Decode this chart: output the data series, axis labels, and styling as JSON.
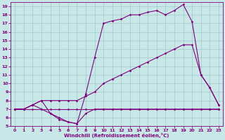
{
  "background_color": "#c8e8e8",
  "grid_color": "#a0c8c8",
  "line_color": "#800080",
  "xlabel": "Windchill (Refroidissement éolien,°C)",
  "xlim": [
    -0.5,
    23.5
  ],
  "ylim": [
    5,
    19.5
  ],
  "xticks": [
    0,
    1,
    2,
    3,
    4,
    5,
    6,
    7,
    8,
    9,
    10,
    11,
    12,
    13,
    14,
    15,
    16,
    17,
    18,
    19,
    20,
    21,
    22,
    23
  ],
  "yticks": [
    5,
    6,
    7,
    8,
    9,
    10,
    11,
    12,
    13,
    14,
    15,
    16,
    17,
    18,
    19
  ],
  "line_flat_x": [
    0,
    1,
    2,
    3,
    4,
    5,
    6,
    7,
    8,
    9,
    10,
    11,
    12,
    13,
    14,
    15,
    16,
    17,
    18,
    19,
    20,
    21,
    22,
    23
  ],
  "line_flat_y": [
    7,
    7,
    7,
    7,
    7,
    7,
    7,
    7,
    7,
    7,
    7,
    7,
    7,
    7,
    7,
    7,
    7,
    7,
    7,
    7,
    7,
    7,
    7,
    7
  ],
  "line_low_x": [
    0,
    1,
    2,
    3,
    4,
    5,
    6,
    7,
    8,
    9,
    10,
    11,
    12,
    13,
    14,
    15,
    16,
    17,
    18,
    19,
    20,
    21,
    22,
    23
  ],
  "line_low_y": [
    7,
    7,
    7.5,
    7,
    6.5,
    5.8,
    5.5,
    5.3,
    6.5,
    7,
    7,
    7,
    7,
    7,
    7,
    7,
    7,
    7,
    7,
    7,
    7,
    7,
    7,
    7
  ],
  "line_mid_x": [
    0,
    1,
    2,
    3,
    4,
    5,
    6,
    7,
    8,
    9,
    10,
    11,
    12,
    13,
    14,
    15,
    16,
    17,
    18,
    19,
    20,
    21,
    22,
    23
  ],
  "line_mid_y": [
    7,
    7,
    7.5,
    8,
    8,
    8,
    8,
    8,
    8.5,
    9,
    10,
    10.5,
    11,
    11.5,
    12,
    12.5,
    13,
    13.5,
    14,
    14.5,
    14.5,
    11,
    9.5,
    7.5
  ],
  "line_top_x": [
    0,
    1,
    2,
    3,
    4,
    5,
    6,
    7,
    8,
    9,
    10,
    11,
    12,
    13,
    14,
    15,
    16,
    17,
    18,
    19,
    20,
    21,
    22,
    23
  ],
  "line_top_y": [
    7,
    7,
    7.5,
    8,
    6.5,
    6,
    5.5,
    5.3,
    8.8,
    13,
    17,
    17.3,
    17.5,
    18,
    18,
    18.3,
    18.5,
    18,
    18.5,
    19.2,
    17.2,
    11,
    9.5,
    7.5
  ]
}
